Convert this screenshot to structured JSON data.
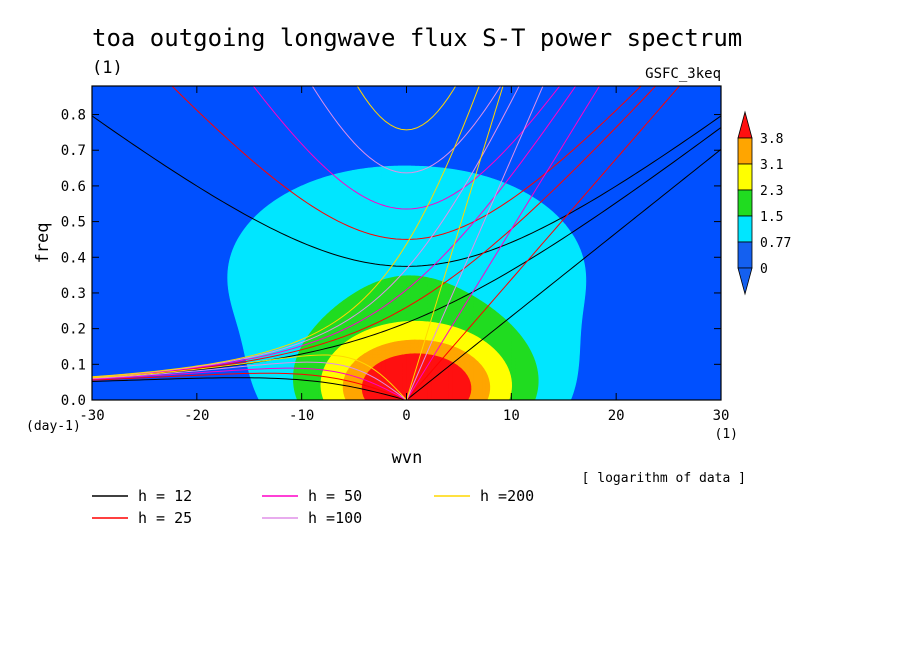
{
  "chart_data": {
    "type": "heatmap",
    "title": "toa outgoing longwave flux S-T power spectrum",
    "subtitle": "(1)",
    "model_label": "GSFC_3keq",
    "xlabel": "wvn",
    "x_units": "(1)",
    "ylabel": "freq",
    "y_units": "(day-1)",
    "note": "[ logarithm of data ]",
    "xlim": [
      -30,
      30
    ],
    "ylim": [
      0,
      0.88
    ],
    "xticks": [
      -30,
      -20,
      -10,
      0,
      10,
      20,
      30
    ],
    "xtick_labels": [
      "-30",
      "-20",
      "-10",
      "0",
      "10",
      "20",
      "30"
    ],
    "yticks": [
      0,
      0.1,
      0.2,
      0.3,
      0.4,
      0.5,
      0.6,
      0.7,
      0.8
    ],
    "ytick_labels": [
      "0.0",
      "0.1",
      "0.2",
      "0.3",
      "0.4",
      "0.5",
      "0.6",
      "0.7",
      "0.8"
    ],
    "colorbar": {
      "levels": [
        0,
        0.77,
        1.5,
        2.3,
        3.1,
        3.8
      ],
      "labels": [
        "0",
        "0.77",
        "1.5",
        "2.3",
        "3.1",
        "3.8"
      ],
      "colors": [
        "#1460f0",
        "#00e6ff",
        "#20dc20",
        "#ffff00",
        "#ffa500",
        "#ff1010"
      ],
      "below_color": "#1460f0",
      "above_color": "#ff1010",
      "background_color": "#0050ff"
    },
    "dispersion_curves": [
      {
        "label": "h = 12",
        "equivalent_depth": 12,
        "color": "#000000"
      },
      {
        "label": "h = 25",
        "equivalent_depth": 25,
        "color": "#ff0000"
      },
      {
        "label": "h = 50",
        "equivalent_depth": 50,
        "color": "#ff00c8"
      },
      {
        "label": "h =100",
        "equivalent_depth": 100,
        "color": "#e090e8"
      },
      {
        "label": "h =200",
        "equivalent_depth": 200,
        "color": "#ffd700"
      }
    ]
  }
}
